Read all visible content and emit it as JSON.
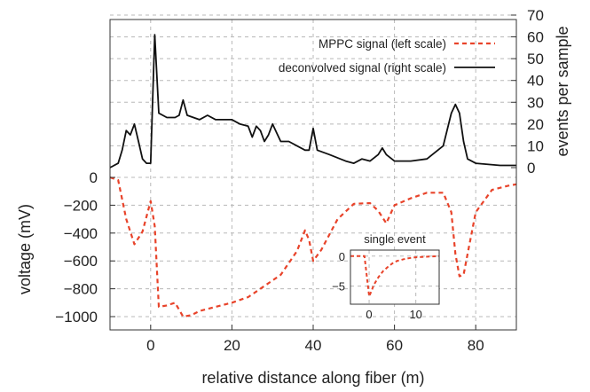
{
  "chart_data": [
    {
      "type": "line",
      "xlabel": "relative distance along fiber (m)",
      "ylabel_left": "voltage (mV)",
      "ylabel_right": "events per sample",
      "xlim": [
        -10,
        90
      ],
      "ylim_left": [
        -1050,
        0
      ],
      "ylim_right": [
        0,
        70
      ],
      "x_ticks": [
        0,
        20,
        40,
        60,
        80
      ],
      "y_ticks_left": [
        0,
        -200,
        -400,
        -600,
        -800,
        -1000
      ],
      "y_ticks_right": [
        0,
        10,
        20,
        30,
        40,
        50,
        60,
        70
      ],
      "grid": true,
      "legend_position": "top-right",
      "series": [
        {
          "name": "MPPC signal (left scale)",
          "axis": "left",
          "color": "#e8432a",
          "style": "dashed",
          "points": [
            [
              -10,
              0
            ],
            [
              -8,
              -20
            ],
            [
              -6,
              -300
            ],
            [
              -4,
              -480
            ],
            [
              -2,
              -390
            ],
            [
              0,
              -170
            ],
            [
              1,
              -350
            ],
            [
              2,
              -930
            ],
            [
              4,
              -920
            ],
            [
              6,
              -900
            ],
            [
              8,
              -1000
            ],
            [
              10,
              -990
            ],
            [
              12,
              -960
            ],
            [
              16,
              -930
            ],
            [
              20,
              -900
            ],
            [
              24,
              -860
            ],
            [
              28,
              -780
            ],
            [
              32,
              -700
            ],
            [
              36,
              -530
            ],
            [
              38,
              -380
            ],
            [
              39,
              -450
            ],
            [
              40,
              -600
            ],
            [
              42,
              -520
            ],
            [
              46,
              -300
            ],
            [
              50,
              -190
            ],
            [
              54,
              -185
            ],
            [
              56,
              -240
            ],
            [
              58,
              -330
            ],
            [
              60,
              -200
            ],
            [
              64,
              -150
            ],
            [
              68,
              -110
            ],
            [
              72,
              -110
            ],
            [
              74,
              -250
            ],
            [
              75,
              -550
            ],
            [
              76,
              -710
            ],
            [
              77,
              -700
            ],
            [
              78,
              -550
            ],
            [
              80,
              -250
            ],
            [
              84,
              -90
            ],
            [
              88,
              -60
            ],
            [
              90,
              -50
            ]
          ]
        },
        {
          "name": "deconvolved signal (right scale)",
          "axis": "right",
          "color": "#111111",
          "style": "solid",
          "points": [
            [
              -10,
              0
            ],
            [
              -8,
              2
            ],
            [
              -7,
              8
            ],
            [
              -6,
              17
            ],
            [
              -5,
              15
            ],
            [
              -4,
              20
            ],
            [
              -3,
              12
            ],
            [
              -2,
              4
            ],
            [
              -1,
              2
            ],
            [
              0,
              2
            ],
            [
              1,
              61
            ],
            [
              2,
              25
            ],
            [
              4,
              23
            ],
            [
              6,
              23
            ],
            [
              7,
              24
            ],
            [
              8,
              31
            ],
            [
              9,
              24
            ],
            [
              12,
              22
            ],
            [
              14,
              24
            ],
            [
              16,
              22
            ],
            [
              20,
              22
            ],
            [
              22,
              20
            ],
            [
              24,
              19
            ],
            [
              25,
              14
            ],
            [
              26,
              19
            ],
            [
              27,
              17
            ],
            [
              28,
              12
            ],
            [
              29,
              15
            ],
            [
              30,
              20
            ],
            [
              32,
              12
            ],
            [
              34,
              12
            ],
            [
              36,
              10
            ],
            [
              38,
              8
            ],
            [
              39,
              8
            ],
            [
              40,
              18
            ],
            [
              41,
              8
            ],
            [
              44,
              6
            ],
            [
              48,
              3
            ],
            [
              50,
              2
            ],
            [
              52,
              4
            ],
            [
              54,
              3
            ],
            [
              56,
              6
            ],
            [
              57,
              9
            ],
            [
              58,
              6
            ],
            [
              60,
              3
            ],
            [
              64,
              3
            ],
            [
              68,
              4
            ],
            [
              72,
              10
            ],
            [
              74,
              25
            ],
            [
              75,
              29
            ],
            [
              76,
              25
            ],
            [
              77,
              12
            ],
            [
              78,
              4
            ],
            [
              80,
              2
            ],
            [
              86,
              1
            ],
            [
              90,
              1
            ]
          ]
        }
      ]
    },
    {
      "type": "line",
      "title": "single event",
      "xlim": [
        -4,
        15
      ],
      "ylim": [
        -8,
        1
      ],
      "x_ticks": [
        0,
        10
      ],
      "y_ticks": [
        0,
        -5
      ],
      "grid": true,
      "series": [
        {
          "color": "#e8432a",
          "style": "dashed",
          "points": [
            [
              -4,
              0
            ],
            [
              -1,
              0
            ],
            [
              0,
              -6.7
            ],
            [
              0.5,
              -5.8
            ],
            [
              1,
              -4.8
            ],
            [
              2,
              -3.5
            ],
            [
              3,
              -2.5
            ],
            [
              4,
              -1.8
            ],
            [
              5,
              -1.2
            ],
            [
              6,
              -0.8
            ],
            [
              8,
              -0.4
            ],
            [
              10,
              -0.2
            ],
            [
              12,
              -0.1
            ],
            [
              15,
              0
            ]
          ]
        }
      ]
    }
  ]
}
